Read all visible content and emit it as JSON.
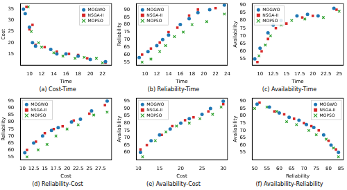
{
  "chart_data": [
    {
      "type": "scatter",
      "title": "(a) Cost-Time",
      "x_label": "Time",
      "y_label": "Cost",
      "xlim": [
        8.5,
        23.5
      ],
      "ylim": [
        10,
        37.5
      ],
      "xticks": [
        10,
        12,
        14,
        16,
        18,
        20,
        22
      ],
      "yticks": [
        15,
        20,
        25,
        30,
        35
      ],
      "grid": false,
      "legend": "upper right",
      "series": [
        {
          "name": "MOGWO",
          "color": "#1f77b4",
          "marker": "circle",
          "x": [
            9,
            9.3,
            10,
            10.5,
            11,
            13.5,
            14.5,
            16,
            18,
            20,
            22.5
          ],
          "values": [
            35,
            33,
            27,
            20,
            18.5,
            17,
            15,
            15,
            14,
            12.5,
            11.5
          ]
        },
        {
          "name": "NSGA-II",
          "color": "#d62728",
          "marker": "square",
          "x": [
            9.5,
            10,
            10.5,
            11,
            12.5,
            14.5,
            16.5,
            18,
            19.5,
            22.5
          ],
          "values": [
            36,
            26,
            28,
            19,
            18,
            16,
            15,
            14.5,
            13,
            11
          ]
        },
        {
          "name": "MOPSO",
          "color": "#2ca02c",
          "marker": "x",
          "x": [
            9.8,
            10.3,
            11.5,
            12,
            14,
            15.5,
            17.5,
            19,
            21,
            22
          ],
          "values": [
            36,
            25,
            20,
            18,
            15.5,
            14,
            13,
            13.5,
            13,
            11
          ]
        }
      ]
    },
    {
      "type": "scatter",
      "title": "(b) Reliability-Time",
      "x_label": "Time",
      "y_label": "Reliability",
      "xlim": [
        8.5,
        24
      ],
      "ylim": [
        53,
        94
      ],
      "xticks": [
        10,
        12,
        14,
        16,
        18,
        20,
        22,
        24
      ],
      "yticks": [
        55,
        60,
        65,
        70,
        75,
        80,
        85,
        90
      ],
      "grid": false,
      "legend": "upper left",
      "series": [
        {
          "name": "MOGWO",
          "color": "#1f77b4",
          "marker": "circle",
          "x": [
            9,
            10.5,
            12,
            13,
            14,
            16,
            17.5,
            19,
            21,
            23.5
          ],
          "values": [
            58,
            62,
            66,
            70,
            73,
            80,
            84,
            88,
            90,
            93
          ]
        },
        {
          "name": "NSGA-II",
          "color": "#d62728",
          "marker": "square",
          "x": [
            9.5,
            11,
            12.5,
            14,
            15.5,
            17.5,
            19,
            22
          ],
          "values": [
            60,
            64,
            68,
            75,
            78,
            86,
            90,
            91
          ]
        },
        {
          "name": "MOPSO",
          "color": "#2ca02c",
          "marker": "x",
          "x": [
            9.5,
            11,
            12.5,
            13.5,
            15,
            16.5,
            18,
            20.5,
            23.5
          ],
          "values": [
            55,
            57,
            62,
            66,
            72,
            75,
            80,
            82,
            87
          ]
        }
      ]
    },
    {
      "type": "scatter",
      "title": "(c) Availability-Time",
      "x_label": "Time",
      "y_label": "Availability",
      "xlim": [
        8.5,
        25.8
      ],
      "ylim": [
        51,
        91
      ],
      "xticks": [
        10,
        12.5,
        15,
        17.5,
        20,
        22.5,
        25
      ],
      "yticks": [
        55,
        60,
        65,
        70,
        75,
        80,
        85,
        90
      ],
      "grid": false,
      "legend": "upper left",
      "series": [
        {
          "name": "MOGWO",
          "color": "#1f77b4",
          "marker": "circle",
          "x": [
            9,
            10,
            11.5,
            12.5,
            14,
            17,
            19,
            21,
            24
          ],
          "values": [
            55,
            62,
            72,
            77,
            80,
            83,
            84,
            83,
            88
          ]
        },
        {
          "name": "NSGA-II",
          "color": "#d62728",
          "marker": "square",
          "x": [
            9.5,
            10.3,
            11.5,
            13,
            15,
            18,
            20,
            24.5
          ],
          "values": [
            53,
            60,
            68,
            75,
            78,
            82,
            83,
            87
          ]
        },
        {
          "name": "MOPSO",
          "color": "#2ca02c",
          "marker": "x",
          "x": [
            9.8,
            11,
            12,
            14,
            16,
            18.5,
            22,
            25
          ],
          "values": [
            57,
            64,
            70,
            77,
            80,
            81,
            82,
            86
          ]
        }
      ]
    },
    {
      "type": "scatter",
      "title": "(d) Reliability-Cost",
      "x_label": "Cost",
      "y_label": "Reliability",
      "xlim": [
        9.5,
        30
      ],
      "ylim": [
        53,
        97
      ],
      "xticks": [
        10,
        12.5,
        15,
        17.5,
        20,
        22.5,
        25,
        27.5
      ],
      "yticks": [
        55,
        60,
        65,
        70,
        75,
        80,
        85,
        90,
        95
      ],
      "grid": false,
      "legend": "upper left",
      "series": [
        {
          "name": "MOGWO",
          "color": "#1f77b4",
          "marker": "circle",
          "x": [
            10.5,
            12.5,
            14.5,
            16.5,
            18,
            21,
            23,
            25.5,
            29
          ],
          "values": [
            58,
            65,
            70,
            74,
            76,
            80,
            82,
            88,
            95
          ]
        },
        {
          "name": "NSGA-II",
          "color": "#d62728",
          "marker": "square",
          "x": [
            11,
            13,
            15,
            17,
            19,
            21.5,
            25,
            28.5
          ],
          "values": [
            60,
            66,
            72,
            75,
            77,
            81,
            86,
            92
          ]
        },
        {
          "name": "MOPSO",
          "color": "#2ca02c",
          "marker": "x",
          "x": [
            11,
            13.5,
            15.5,
            17.5,
            20,
            22.5,
            26,
            29
          ],
          "values": [
            55,
            60,
            64,
            70,
            75,
            78,
            85,
            87
          ]
        }
      ]
    },
    {
      "type": "scatter",
      "title": "(e) Availability-Cost",
      "x_label": "Cost",
      "y_label": "Availability",
      "xlim": [
        9.5,
        31
      ],
      "ylim": [
        55,
        97
      ],
      "xticks": [
        10,
        15,
        20,
        25,
        30
      ],
      "yticks": [
        60,
        65,
        70,
        75,
        80,
        85,
        90,
        95
      ],
      "grid": false,
      "legend": "upper left",
      "series": [
        {
          "name": "MOGWO",
          "color": "#1f77b4",
          "marker": "circle",
          "x": [
            10.5,
            13,
            15,
            17.5,
            20,
            22,
            25,
            27,
            30
          ],
          "values": [
            60,
            68,
            72,
            76,
            80,
            83,
            86,
            90,
            95
          ]
        },
        {
          "name": "NSGA-II",
          "color": "#d62728",
          "marker": "square",
          "x": [
            10.5,
            12,
            15.5,
            18,
            21,
            23,
            26.5,
            30
          ],
          "values": [
            62,
            65,
            72,
            78,
            82,
            84,
            88,
            93
          ]
        },
        {
          "name": "MOPSO",
          "color": "#2ca02c",
          "marker": "x",
          "x": [
            11,
            14,
            16.5,
            19,
            22,
            24.5,
            27.5,
            29.5
          ],
          "values": [
            57,
            68,
            74,
            78,
            80,
            83,
            86,
            91
          ]
        }
      ]
    },
    {
      "type": "scatter",
      "title": "(f) Availability-Reliability",
      "x_label": "Reliability",
      "y_label": "Availability",
      "xlim": [
        49,
        86
      ],
      "ylim": [
        50,
        92
      ],
      "xticks": [
        50,
        55,
        60,
        65,
        70,
        75,
        80,
        85
      ],
      "yticks": [
        55,
        60,
        65,
        70,
        75,
        80,
        85,
        90
      ],
      "grid": false,
      "legend": "upper right",
      "series": [
        {
          "name": "MOGWO",
          "color": "#1f77b4",
          "marker": "circle",
          "x": [
            51,
            56,
            60,
            64,
            68,
            71,
            74,
            78,
            81,
            84
          ],
          "values": [
            88,
            86,
            82,
            79,
            77,
            74,
            72,
            67,
            60,
            55
          ]
        },
        {
          "name": "NSGA-II",
          "color": "#d62728",
          "marker": "square",
          "x": [
            52,
            58,
            62,
            66,
            70,
            73,
            76,
            80,
            83
          ],
          "values": [
            89,
            83,
            81,
            78,
            75,
            73,
            70,
            63,
            57
          ]
        },
        {
          "name": "MOPSO",
          "color": "#2ca02c",
          "marker": "x",
          "x": [
            50,
            55,
            59,
            63,
            67,
            72,
            75,
            79,
            82,
            84
          ],
          "values": [
            85,
            86,
            83,
            76,
            74,
            70,
            67,
            64,
            58,
            52
          ]
        }
      ]
    }
  ]
}
